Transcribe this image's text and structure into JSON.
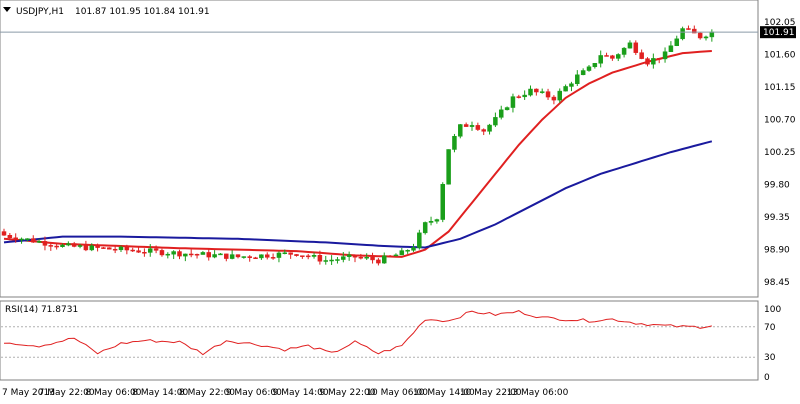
{
  "window": {
    "symbol_label": "USDJPY,H1",
    "ohlc_text": "101.87 101.95 101.84 101.91",
    "menu_icon": "triangle-down-icon"
  },
  "price_panel": {
    "current_price_label": "101.91",
    "current_price": 101.91,
    "price_axis_labels": [
      "102.05",
      "101.60",
      "101.15",
      "100.70",
      "100.25",
      "99.80",
      "99.35",
      "98.90",
      "98.45"
    ]
  },
  "rsi_panel": {
    "title": "RSI(14) 71.8731",
    "axis_labels": [
      "100",
      "70",
      "30",
      "0"
    ],
    "levels": [
      70,
      30
    ]
  },
  "time_axis": {
    "labels": [
      "7 May 2013",
      "7 May 22:00",
      "8 May 06:00",
      "8 May 14:00",
      "8 May 22:00",
      "9 May 06:00",
      "9 May 14:00",
      "9 May 22:00",
      "10 May 06:00",
      "10 May 14:00",
      "10 May 22:00",
      "13 May 06:00"
    ]
  },
  "colors": {
    "up_candle": "#1a9e1a",
    "down_candle": "#e02020",
    "fast_ma": "#e02020",
    "slow_ma": "#1a1a9e",
    "rsi_line": "#e02020",
    "grid_border": "#808080",
    "price_line": "#8a9aa8"
  },
  "chart_data": [
    {
      "type": "candlestick",
      "title": "USDJPY,H1",
      "ylim": [
        98.3,
        102.3
      ],
      "anchors": {
        "close": [
          [
            0,
            99.1
          ],
          [
            10,
            98.95
          ],
          [
            20,
            98.9
          ],
          [
            30,
            98.85
          ],
          [
            40,
            98.8
          ],
          [
            50,
            98.85
          ],
          [
            55,
            98.75
          ],
          [
            60,
            98.8
          ],
          [
            64,
            98.75
          ],
          [
            68,
            98.85
          ],
          [
            70,
            98.95
          ],
          [
            72,
            99.25
          ],
          [
            74,
            99.35
          ],
          [
            76,
            100.3
          ],
          [
            78,
            100.6
          ],
          [
            80,
            100.65
          ],
          [
            82,
            100.55
          ],
          [
            84,
            100.7
          ],
          [
            87,
            101.0
          ],
          [
            90,
            101.1
          ],
          [
            94,
            101.0
          ],
          [
            98,
            101.3
          ],
          [
            100,
            101.4
          ],
          [
            102,
            101.6
          ],
          [
            104,
            101.55
          ],
          [
            107,
            101.75
          ],
          [
            110,
            101.5
          ],
          [
            113,
            101.6
          ],
          [
            116,
            101.95
          ],
          [
            119,
            101.85
          ],
          [
            121,
            101.91
          ]
        ]
      },
      "series": [
        {
          "kind": "moving_average_fast",
          "anchors": [
            [
              0,
              99.05
            ],
            [
              10,
              98.98
            ],
            [
              30,
              98.92
            ],
            [
              50,
              98.88
            ],
            [
              60,
              98.82
            ],
            [
              68,
              98.8
            ],
            [
              72,
              98.9
            ],
            [
              76,
              99.15
            ],
            [
              80,
              99.55
            ],
            [
              84,
              99.95
            ],
            [
              88,
              100.35
            ],
            [
              92,
              100.7
            ],
            [
              96,
              101.0
            ],
            [
              100,
              101.2
            ],
            [
              104,
              101.35
            ],
            [
              110,
              101.5
            ],
            [
              116,
              101.62
            ],
            [
              121,
              101.65
            ]
          ]
        },
        {
          "kind": "moving_average_slow",
          "anchors": [
            [
              0,
              99.0
            ],
            [
              10,
              99.08
            ],
            [
              20,
              99.08
            ],
            [
              40,
              99.05
            ],
            [
              55,
              99.0
            ],
            [
              65,
              98.95
            ],
            [
              72,
              98.93
            ],
            [
              78,
              99.05
            ],
            [
              84,
              99.25
            ],
            [
              90,
              99.5
            ],
            [
              96,
              99.75
            ],
            [
              102,
              99.95
            ],
            [
              108,
              100.1
            ],
            [
              114,
              100.25
            ],
            [
              121,
              100.4
            ]
          ]
        }
      ]
    },
    {
      "type": "line",
      "title": "RSI(14) 71.8731",
      "ylim": [
        0,
        100
      ],
      "series": [
        {
          "name": "RSI(14)",
          "anchors": [
            [
              0,
              50
            ],
            [
              6,
              45
            ],
            [
              12,
              55
            ],
            [
              16,
              35
            ],
            [
              20,
              48
            ],
            [
              24,
              52
            ],
            [
              30,
              50
            ],
            [
              34,
              35
            ],
            [
              38,
              52
            ],
            [
              44,
              46
            ],
            [
              48,
              40
            ],
            [
              52,
              45
            ],
            [
              56,
              35
            ],
            [
              60,
              50
            ],
            [
              64,
              35
            ],
            [
              68,
              45
            ],
            [
              72,
              80
            ],
            [
              76,
              78
            ],
            [
              80,
              90
            ],
            [
              84,
              86
            ],
            [
              88,
              90
            ],
            [
              92,
              82
            ],
            [
              96,
              80
            ],
            [
              100,
              78
            ],
            [
              104,
              80
            ],
            [
              108,
              75
            ],
            [
              112,
              72
            ],
            [
              116,
              70
            ],
            [
              119,
              70
            ],
            [
              121,
              71.87
            ]
          ]
        }
      ]
    }
  ]
}
